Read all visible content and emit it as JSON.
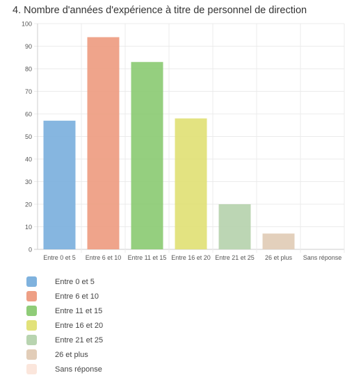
{
  "question": {
    "title": "4. Nombre d'années d'expérience à titre de personnel de direction"
  },
  "chart_data": {
    "type": "bar",
    "title": "4. Nombre d'années d'expérience à titre de personnel de direction",
    "categories": [
      "Entre 0 et 5",
      "Entre 6 et 10",
      "Entre 11 et 15",
      "Entre 16 et 20",
      "Entre 21 et 25",
      "26 et plus",
      "Sans réponse"
    ],
    "values": [
      57,
      94,
      83,
      58,
      20,
      7,
      0
    ],
    "colors": [
      "#7fb2de",
      "#ee9f85",
      "#8fcc78",
      "#e2e27a",
      "#b8d4b0",
      "#e2cdb8",
      "#fbe6dc"
    ],
    "ylim": [
      0,
      100
    ],
    "yticks": [
      0,
      10,
      20,
      30,
      40,
      50,
      60,
      70,
      80,
      90,
      100
    ],
    "grid": true,
    "legend_position": "bottom-left"
  }
}
